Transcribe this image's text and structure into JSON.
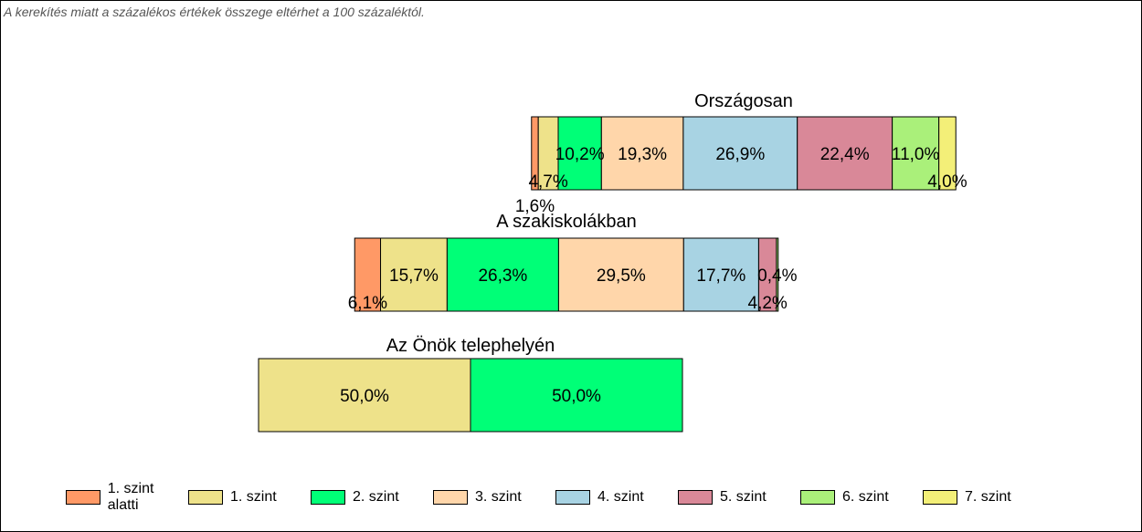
{
  "note": "A kerekítés miatt a  százalékos értékek összege eltérhet a 100 százaléktól.",
  "chart_data": {
    "type": "bar",
    "orientation": "horizontal",
    "stacked": true,
    "levels": [
      "1. szint alatti",
      "1. szint",
      "2. szint",
      "3. szint",
      "4. szint",
      "5. szint",
      "6. szint",
      "7. szint"
    ],
    "colors": [
      "#ff9966",
      "#eee28a",
      "#00ff77",
      "#ffd6aa",
      "#a8d3e3",
      "#d98898",
      "#aaf07a",
      "#f3ef78"
    ],
    "bars": [
      {
        "title": "Országosan",
        "values": [
          1.6,
          4.7,
          10.2,
          19.3,
          26.9,
          22.4,
          11.0,
          4.0
        ],
        "labels": [
          "1,6%",
          "4,7%",
          "10,2%",
          "19,3%",
          "26,9%",
          "22,4%",
          "11,0%",
          "4,0%"
        ]
      },
      {
        "title": "A szakiskolákban",
        "values": [
          6.1,
          15.7,
          26.3,
          29.5,
          17.7,
          4.2,
          0.4,
          0.0
        ],
        "labels": [
          "6,1%",
          "15,7%",
          "26,3%",
          "29,5%",
          "17,7%",
          "4,2%",
          "0,4%",
          ""
        ]
      },
      {
        "title": "Az Önök telephelyén",
        "values": [
          0.0,
          50.0,
          50.0,
          0.0,
          0.0,
          0.0,
          0.0,
          0.0
        ],
        "labels": [
          "",
          "50,0%",
          "50,0%",
          "",
          "",
          "",
          "",
          ""
        ]
      }
    ],
    "legend_position": "bottom",
    "grid": false
  }
}
